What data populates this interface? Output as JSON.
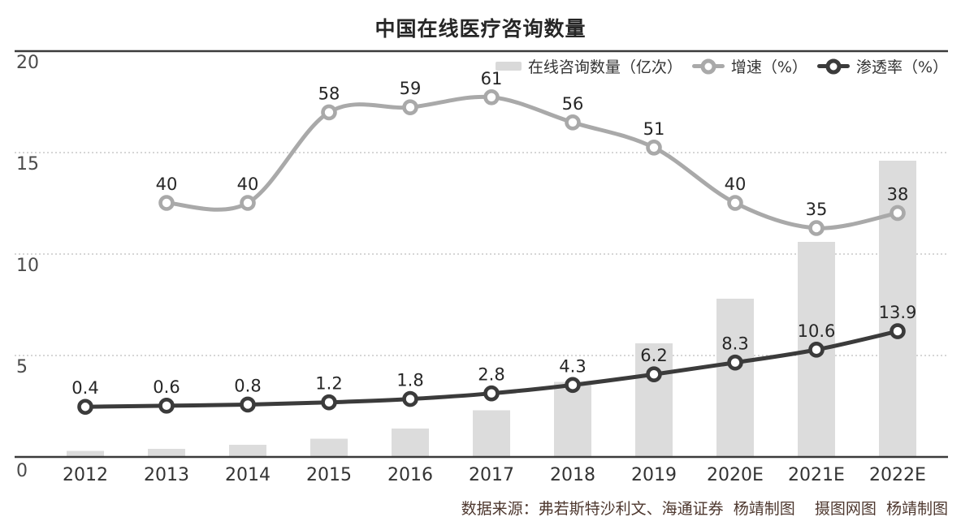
{
  "title": "中国在线医疗咨询数量",
  "legend": [
    {
      "label": "在线咨询数量（亿次）",
      "swatch": "bar-swatch",
      "color": "#d9d9d9"
    },
    {
      "label": "增速（%）",
      "swatch": "line-marker",
      "color": "#a9a9a9"
    },
    {
      "label": "渗透率（%）",
      "swatch": "line-marker",
      "color": "#3b3b3b"
    }
  ],
  "footer": "数据来源：弗若斯特沙利文、海通证券  杨靖制图    摄图网图  杨靖制图",
  "chart_data": {
    "type": "combo",
    "title": "中国在线医疗咨询数量",
    "categories": [
      "2012",
      "2013",
      "2014",
      "2015",
      "2016",
      "2017",
      "2018",
      "2019",
      "2020E",
      "2021E",
      "2022E"
    ],
    "left_axis": {
      "ticks": [
        20,
        15,
        10,
        5,
        0
      ],
      "range": [
        0,
        20
      ],
      "gridlines": "dotted-horizontal"
    },
    "legend_position": "top-right",
    "series": [
      {
        "name": "在线咨询数量（亿次）",
        "type": "bar",
        "color": "#dcdcdc",
        "values": [
          0.3,
          0.4,
          0.6,
          0.9,
          1.4,
          2.3,
          3.7,
          5.6,
          7.8,
          10.6,
          14.6
        ]
      },
      {
        "name": "增速（%）",
        "type": "line",
        "color": "#a9a9a9",
        "values": [
          null,
          40,
          40,
          58,
          59,
          61,
          56,
          51,
          40,
          35,
          38
        ],
        "labels": [
          "",
          "40",
          "40",
          "58",
          "59",
          "61",
          "56",
          "51",
          "40",
          "35",
          "38"
        ]
      },
      {
        "name": "渗透率（%）",
        "type": "line",
        "color": "#3b3b3b",
        "values": [
          0.4,
          0.6,
          0.8,
          1.2,
          1.8,
          2.8,
          4.3,
          6.2,
          8.3,
          10.6,
          13.9
        ],
        "labels": [
          "0.4",
          "0.6",
          "0.8",
          "1.2",
          "1.8",
          "2.8",
          "4.3",
          "6.2",
          "8.3",
          "10.6",
          "13.9"
        ]
      }
    ]
  }
}
